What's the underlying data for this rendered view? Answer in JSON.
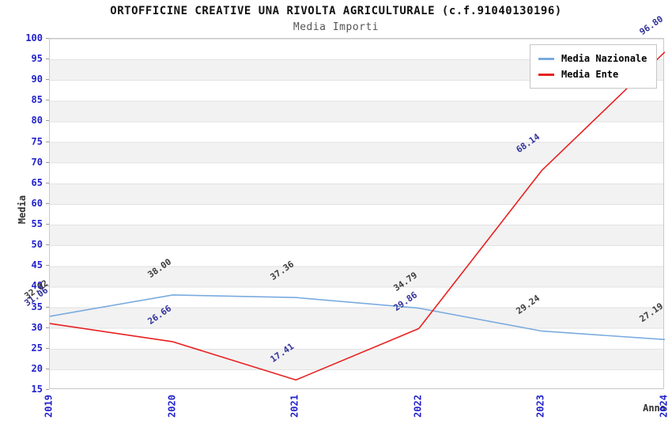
{
  "title": "ORTOFFICINE CREATIVE UNA RIVOLTA AGRICULTURALE (c.f.91040130196)",
  "subtitle": "Media Importi",
  "chart_data": {
    "type": "line",
    "x": [
      "2019",
      "2020",
      "2021",
      "2022",
      "2023",
      "2024"
    ],
    "series": [
      {
        "name": "Media Nazionale",
        "values": [
          32.82,
          38.0,
          37.36,
          34.79,
          29.24,
          27.19
        ],
        "color": "#79abdf",
        "label_color": "#3c3c3c"
      },
      {
        "name": "Media Ente",
        "values": [
          31.06,
          26.66,
          17.41,
          29.86,
          68.14,
          96.8
        ],
        "color": "#e82020",
        "label_color": "#32329b"
      }
    ],
    "xlabel": "Anno",
    "ylabel": "Media",
    "ylim": [
      15,
      100
    ],
    "ytick_step": 5,
    "axis_tick_color": "#2222cc",
    "grid": "horizontal-bands",
    "legend_position": "top-right",
    "legend_entries": [
      "Media Nazionale",
      "Media Ente"
    ]
  }
}
